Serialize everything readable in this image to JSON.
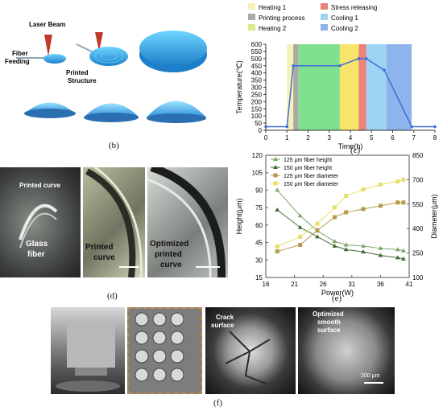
{
  "panel_labels": {
    "b": "(b)",
    "c": "(c)",
    "d": "(d)",
    "e": "(e)",
    "f": "(f)"
  },
  "panel_b": {
    "laser_beam": "Laser Beam",
    "fiber_feeding_1": "Fiber",
    "fiber_feeding_2": "Feeding",
    "printed_structure_1": "Printed",
    "printed_structure_2": "Structure"
  },
  "panel_d": {
    "printed_curve_top": "Printed curve",
    "glass_fiber_1": "Glass",
    "glass_fiber_2": "fiber",
    "printed_curve_mid_1": "Printed",
    "printed_curve_mid_2": "curve",
    "optimized_1": "Optimized",
    "optimized_2": "printed",
    "optimized_3": "curve"
  },
  "panel_f": {
    "crack_1": "Crack",
    "crack_2": "surface",
    "optimized_1": "Optimized",
    "optimized_2": "smooth",
    "optimized_3": "surface",
    "scale": "200 μm"
  },
  "chart_data": [
    {
      "type": "line",
      "panel": "c",
      "xlabel": "Time(h)",
      "ylabel": "Temperature(℃)",
      "xlim": [
        0,
        8
      ],
      "ylim": [
        0,
        600
      ],
      "xticks": [
        "0",
        "1",
        "2",
        "3",
        "4",
        "5",
        "6",
        "7",
        "8"
      ],
      "yticks": [
        "0",
        "50",
        "100",
        "150",
        "200",
        "250",
        "300",
        "350",
        "400",
        "450",
        "500",
        "550",
        "600"
      ],
      "legend": [
        {
          "name": "Heating 1",
          "color": "#f5f0b8"
        },
        {
          "name": "Stress releasing",
          "color": "#e8827a"
        },
        {
          "name": "Printing process",
          "color": "#a9aaa0"
        },
        {
          "name": "Cooling 1",
          "color": "#9fd3f3"
        },
        {
          "name": "Heating 2",
          "color": "#dbe98a"
        },
        {
          "name": "Cooling 2",
          "color": "#8fb3ec"
        }
      ],
      "phases": [
        {
          "name": "Heating 1",
          "x0": 1.0,
          "x1": 1.3,
          "color": "#f5f0b8"
        },
        {
          "name": "Printing process",
          "x0": 1.3,
          "x1": 1.55,
          "color": "#a9aaa0"
        },
        {
          "name": "Heating 2",
          "x0": 1.55,
          "x1": 3.5,
          "color": "#7fe08f"
        },
        {
          "name": "Heating 2",
          "x0": 3.5,
          "x1": 4.4,
          "color": "#f7e46a"
        },
        {
          "name": "Stress releasing",
          "x0": 4.4,
          "x1": 4.75,
          "color": "#e8827a"
        },
        {
          "name": "Cooling 1",
          "x0": 4.75,
          "x1": 5.7,
          "color": "#9fd3f3"
        },
        {
          "name": "Cooling 2",
          "x0": 5.7,
          "x1": 6.9,
          "color": "#8fb3ec"
        }
      ],
      "series": [
        {
          "color": "#3b6fd6",
          "x": [
            0,
            1.0,
            1.3,
            3.5,
            4.4,
            4.75,
            5.6,
            6.9,
            8
          ],
          "y": [
            25,
            25,
            450,
            450,
            500,
            500,
            420,
            25,
            25
          ]
        }
      ]
    },
    {
      "type": "line",
      "panel": "e",
      "xlabel": "Power(W)",
      "ylabel": "Height(μm)",
      "ylabel_right": "Diameter(μm)",
      "xlim": [
        16,
        41
      ],
      "ylim": [
        15,
        120
      ],
      "ylim_right": [
        100,
        850
      ],
      "xticks": [
        "16",
        "21",
        "26",
        "31",
        "36",
        "41"
      ],
      "yticks": [
        "15",
        "30",
        "45",
        "60",
        "75",
        "90",
        "105",
        "120"
      ],
      "yticks_right": [
        "100",
        "250",
        "400",
        "550",
        "700",
        "850"
      ],
      "series": [
        {
          "name": "125 μm fiber height",
          "axis": "left",
          "marker": "triangle",
          "color": "#7ea66a",
          "x": [
            18,
            22,
            25,
            28,
            30,
            33,
            36,
            39,
            40
          ],
          "y": [
            90,
            68,
            55,
            46,
            43,
            42,
            40,
            39,
            38
          ]
        },
        {
          "name": "150 μm fiber height",
          "axis": "left",
          "marker": "triangle",
          "color": "#3f6d34",
          "x": [
            18,
            22,
            25,
            28,
            30,
            33,
            36,
            39,
            40
          ],
          "y": [
            73,
            58,
            50,
            42,
            39,
            37,
            34,
            32,
            31
          ]
        },
        {
          "name": "125 μm fiber diameter",
          "axis": "right",
          "marker": "square",
          "color": "#b49a4a",
          "x": [
            18,
            22,
            25,
            28,
            30,
            33,
            36,
            39,
            40
          ],
          "y": [
            260,
            300,
            390,
            470,
            500,
            520,
            540,
            560,
            560
          ]
        },
        {
          "name": "150 μm fiber diameter",
          "axis": "right",
          "marker": "square",
          "color": "#e6e06a",
          "x": [
            18,
            22,
            25,
            28,
            30,
            33,
            36,
            39,
            40
          ],
          "y": [
            290,
            350,
            430,
            530,
            600,
            640,
            670,
            690,
            700
          ]
        }
      ]
    }
  ]
}
